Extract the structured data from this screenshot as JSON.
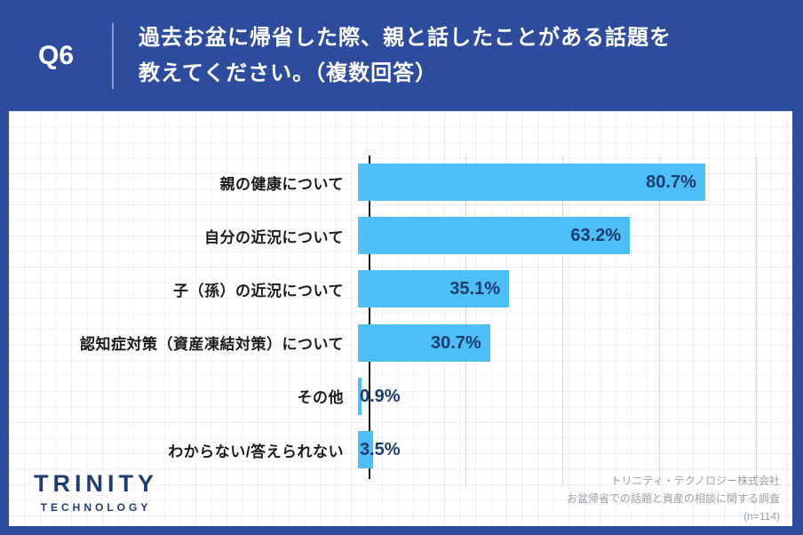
{
  "header": {
    "question_number": "Q6",
    "question_line1": "過去お盆に帰省した際、親と話したことがある話題を",
    "question_line2": "教えてください。（複数回答）"
  },
  "chart_data": {
    "type": "bar",
    "orientation": "horizontal",
    "title": "過去お盆に帰省した際、親と話したことがある話題（複数回答）",
    "categories": [
      "親の健康について",
      "自分の近況について",
      "子（孫）の近況について",
      "認知症対策（資産凍結対策）について",
      "その他",
      "わからない/答えられない"
    ],
    "values": [
      80.7,
      63.2,
      35.1,
      30.7,
      0.9,
      3.5
    ],
    "value_labels": [
      "80.7%",
      "63.2%",
      "35.1%",
      "30.7%",
      "0.9%",
      "3.5%"
    ],
    "unit": "%",
    "xlim": [
      0,
      96
    ],
    "grid": true,
    "legend": "none",
    "bar_color": "#4DBEF6",
    "value_label_color": "#1C3C6E"
  },
  "footer": {
    "logo_title": "TRINITY",
    "logo_subtitle": "TECHNOLOGY",
    "attribution": [
      "トリニティ・テクノロジー株式会社",
      "お盆帰省での話題と資産の相談に関する調査",
      "(n=114)"
    ]
  },
  "colors": {
    "frame_blue": "#2E4C9E",
    "bar_blue": "#4DBEF6",
    "navy_text": "#1C3C6E",
    "category_text": "#1B1B1B",
    "axis_black": "#1B1B1B",
    "attribution_gray": "#9AA0A8"
  }
}
